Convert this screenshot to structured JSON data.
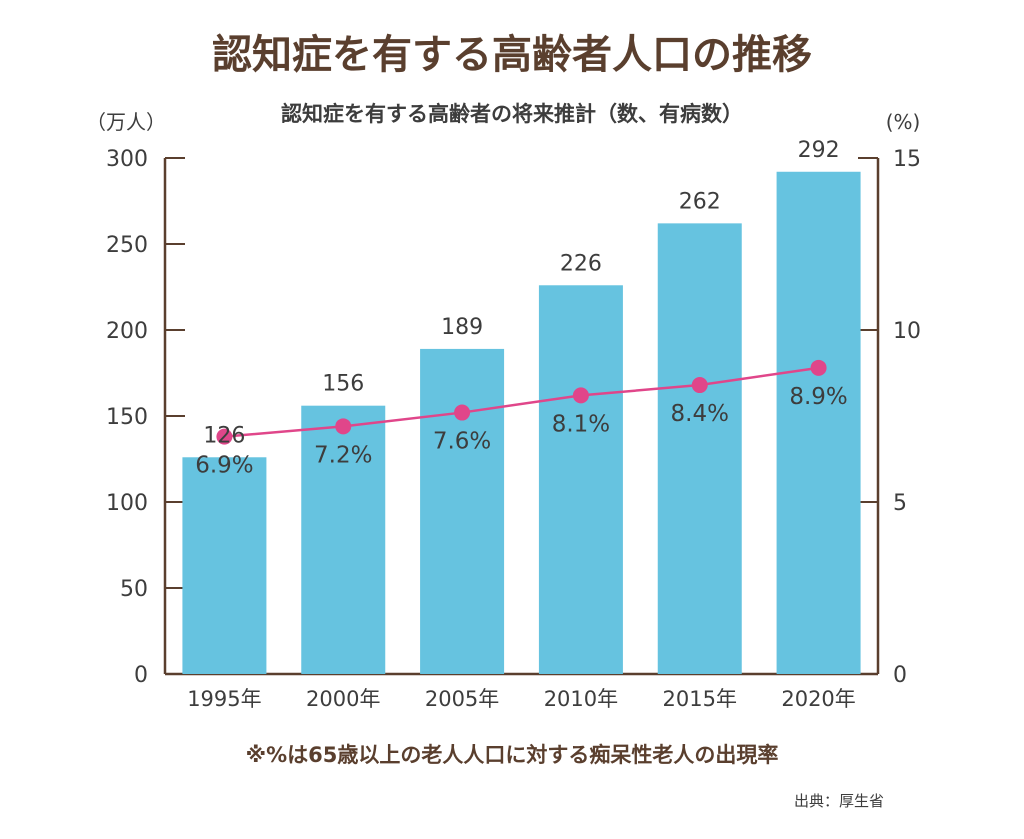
{
  "chart_data": {
    "type": "bar",
    "title": "認知症を有する高齢者人口の推移",
    "subtitle": "認知症を有する高齢者の将来推計（数、有病数）",
    "left_axis_unit": "（万人）",
    "right_axis_unit": "(%)",
    "categories": [
      "1995年",
      "2000年",
      "2005年",
      "2010年",
      "2015年",
      "2020年"
    ],
    "series": [
      {
        "kind": "bar",
        "axis": "left",
        "values": [
          126,
          156,
          189,
          226,
          262,
          292
        ],
        "labels": [
          "126",
          "156",
          "189",
          "226",
          "262",
          "292"
        ],
        "color": "#66c3e0"
      },
      {
        "kind": "line",
        "axis": "right",
        "values": [
          6.9,
          7.2,
          7.6,
          8.1,
          8.4,
          8.9
        ],
        "labels": [
          "6.9%",
          "7.2%",
          "7.6%",
          "8.1%",
          "8.4%",
          "8.9%"
        ],
        "color": "#e0468a"
      }
    ],
    "left_ylim": [
      0,
      300
    ],
    "left_ticks": [
      "0",
      "50",
      "100",
      "150",
      "200",
      "250",
      "300"
    ],
    "right_ylim": [
      0,
      15
    ],
    "right_ticks": [
      "0",
      "5",
      "10",
      "15"
    ],
    "grid": false,
    "axis_color": "#5a3f2e"
  },
  "footnote": "※%は65歳以上の老人人口に対する痴呆性老人の出現率",
  "source": "出典：厚生省",
  "colors": {
    "title": "#5a3f2e",
    "text": "#3d3d3d",
    "bar": "#66c3e0",
    "line": "#e0468a"
  }
}
